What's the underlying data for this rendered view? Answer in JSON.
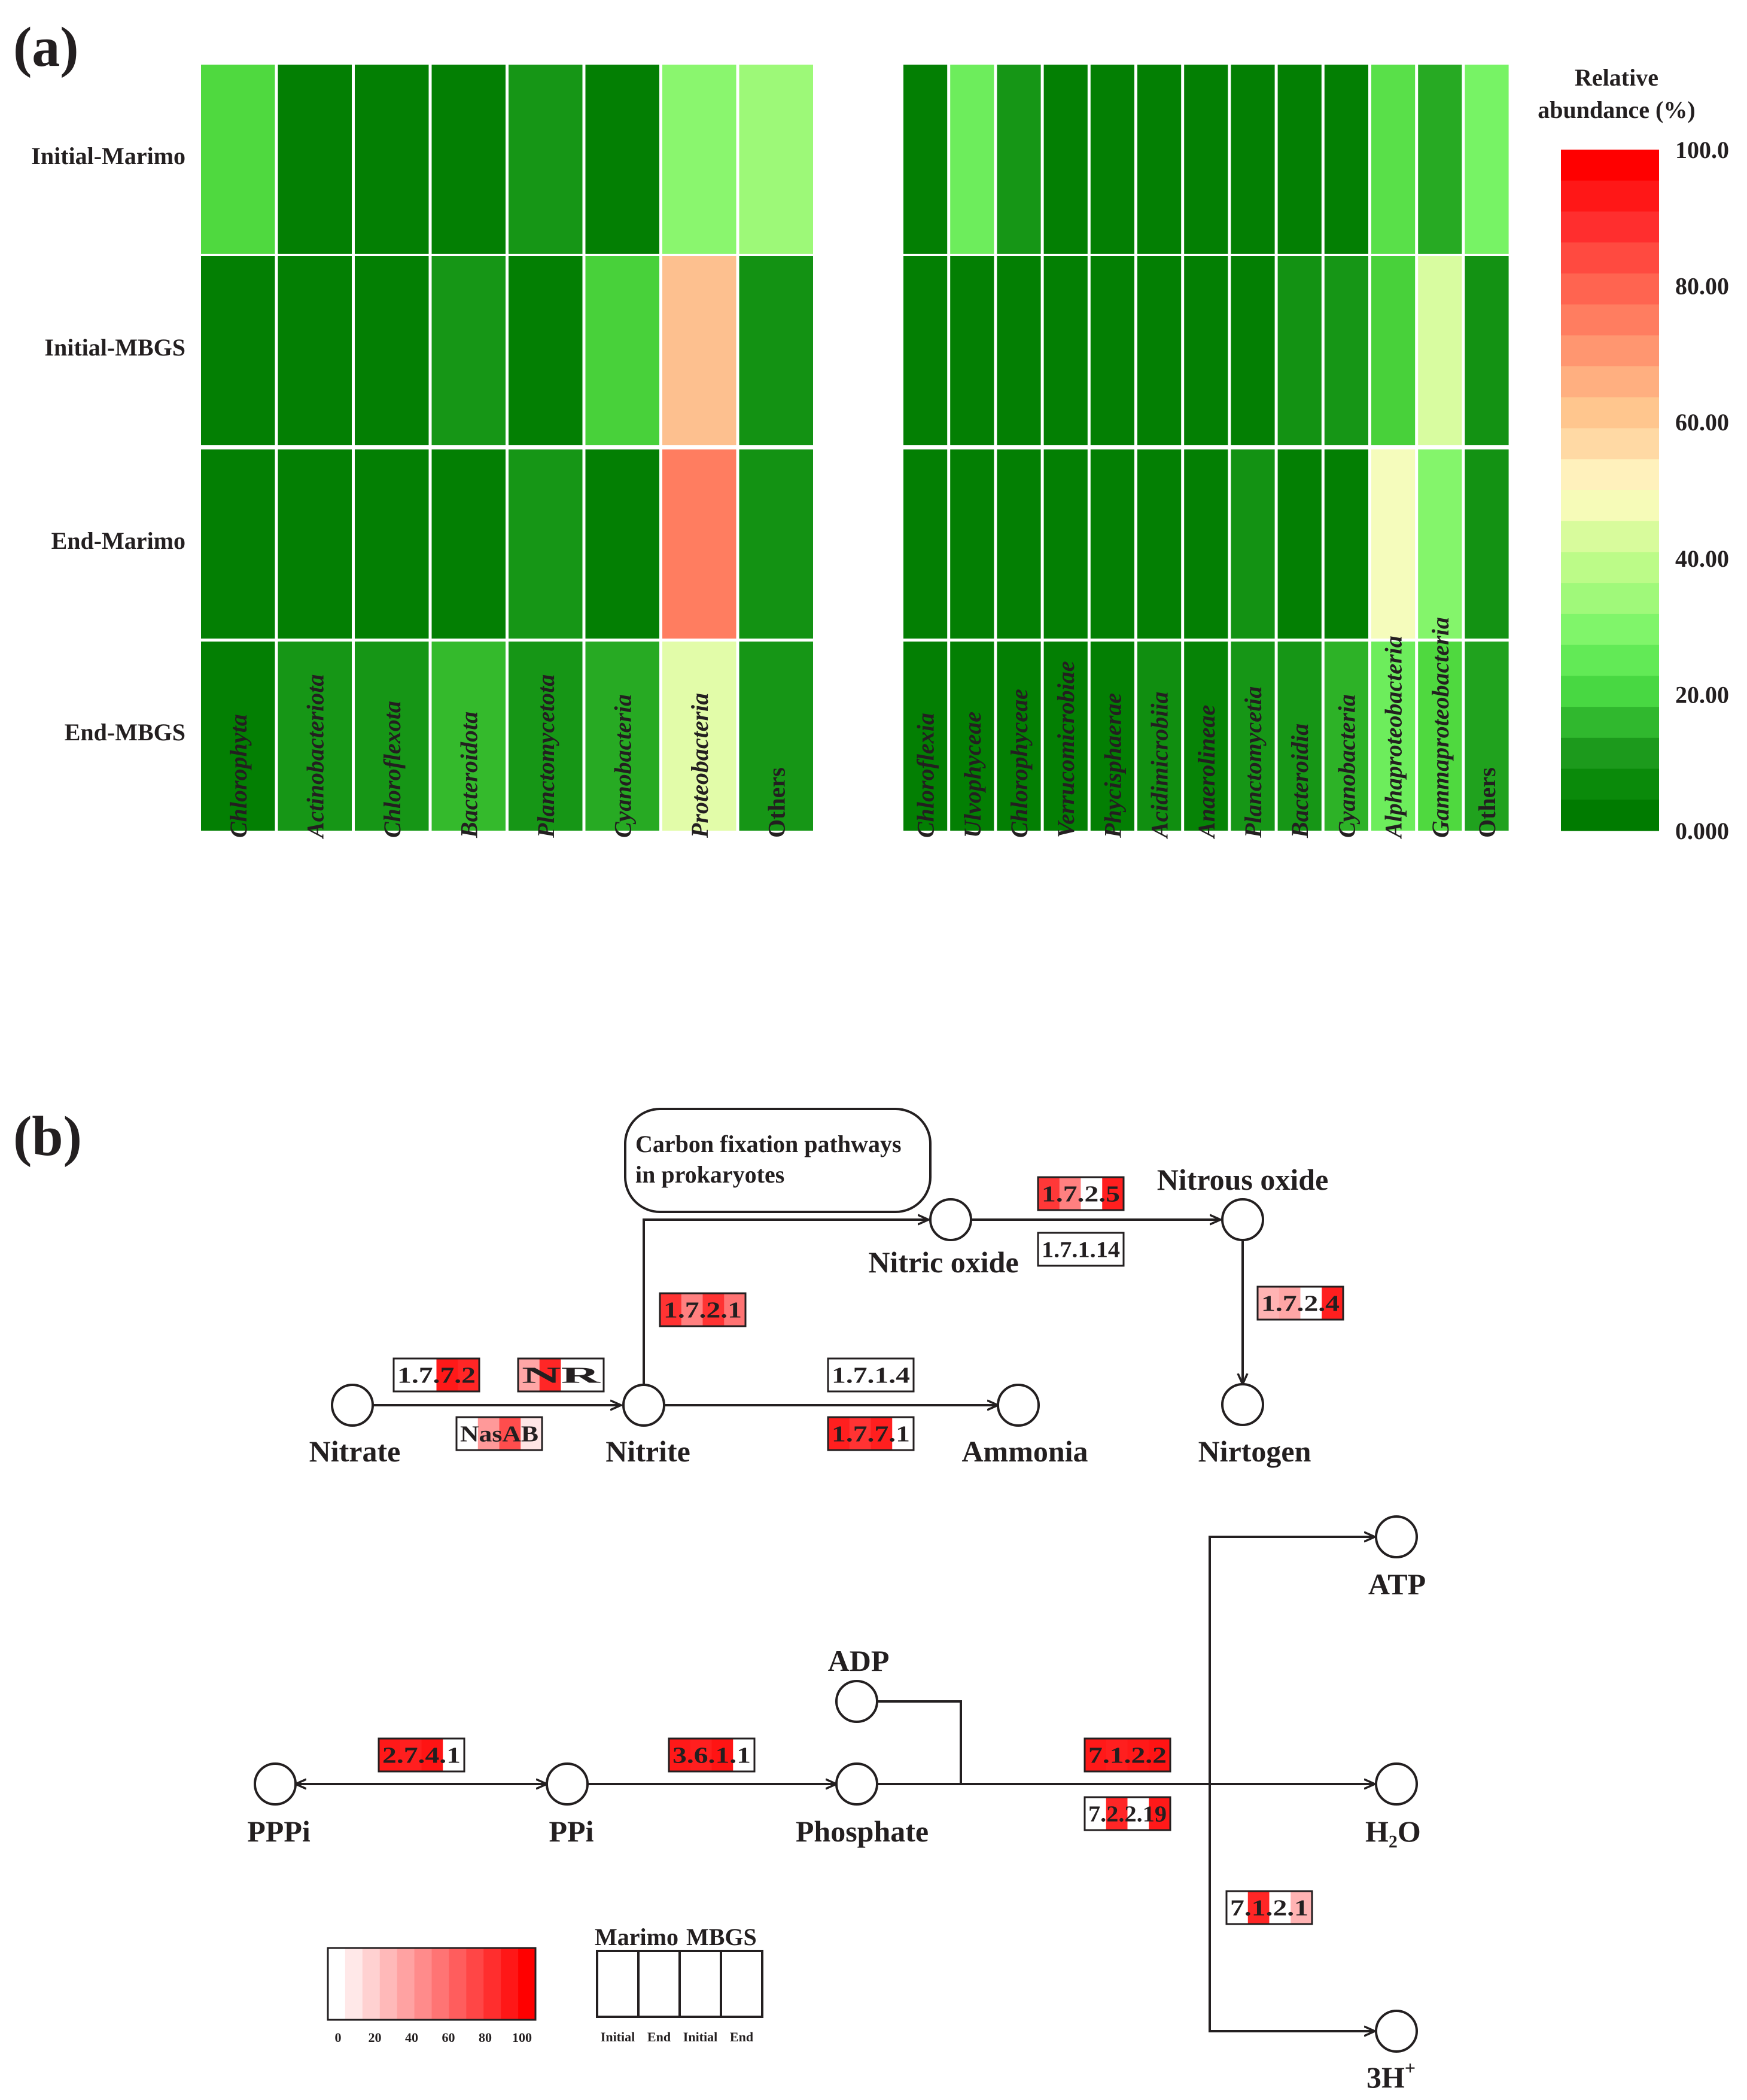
{
  "panel_a_label": "(a)",
  "panel_b_label": "(b)",
  "chart_data": [
    {
      "type": "heatmap",
      "rows": [
        "Initial-Marimo",
        "Initial-MBGS",
        "End-Marimo",
        "End-MBGS"
      ],
      "columns": [
        "Chlorophyta",
        "Actinobacteriota",
        "Chloroflexota",
        "Bacteroidota",
        "Planctomycetota",
        "Cyanobacteria",
        "Proteobacteria",
        "Others"
      ],
      "values": [
        [
          16,
          1,
          1,
          1,
          7,
          1,
          27,
          30
        ],
        [
          1,
          1,
          1,
          7,
          1,
          15,
          60,
          6
        ],
        [
          1,
          1,
          1,
          1,
          7,
          1,
          75,
          6
        ],
        [
          1,
          7,
          7,
          12,
          7,
          10,
          42,
          7
        ]
      ]
    },
    {
      "type": "heatmap",
      "rows": [
        "Initial-Marimo",
        "Initial-MBGS",
        "End-Marimo",
        "End-MBGS"
      ],
      "columns": [
        "Chloroflexia",
        "Ulvophyceae",
        "Chlorophyceae",
        "Verrucomicrobiae",
        "Phycisphaerae",
        "Acidimicrobiia",
        "Anaerolineae",
        "Planctomycetia",
        "Bacteroidia",
        "Cyanobacteria",
        "Alphaproteobacteria",
        "Gammaproteobacteria",
        "Others"
      ],
      "values": [
        [
          1,
          22,
          7,
          1,
          1,
          1,
          1,
          1,
          1,
          1,
          18,
          10,
          24
        ],
        [
          1,
          1,
          1,
          1,
          1,
          1,
          1,
          1,
          6,
          7,
          15,
          40,
          6
        ],
        [
          1,
          1,
          1,
          1,
          1,
          1,
          1,
          6,
          1,
          1,
          46,
          26,
          6
        ],
        [
          1,
          1,
          1,
          1,
          1,
          5,
          2,
          7,
          7,
          11,
          22,
          16,
          9
        ]
      ]
    }
  ],
  "legend": {
    "title_line1": "Relative",
    "title_line2": "abundance (%)",
    "ticks": [
      "100.0",
      "80.00",
      "60.00",
      "40.00",
      "20.00",
      "0.000"
    ],
    "colors_top_to_bottom": [
      "#ff0000",
      "#ff1717",
      "#ff2e2e",
      "#ff4a40",
      "#ff6450",
      "#ff7d60",
      "#ff9670",
      "#ffaf80",
      "#ffc68e",
      "#ffd9a4",
      "#fff1bc",
      "#f6fbb8",
      "#d8fb9c",
      "#bcfb88",
      "#a0f97a",
      "#80f56a",
      "#62ea56",
      "#48d842",
      "#30b82e",
      "#1c9a1c",
      "#0a8a0a",
      "#007b00"
    ],
    "heat_stops": [
      {
        "v": 0,
        "color": "#007b00"
      },
      {
        "v": 8,
        "color": "#199a19"
      },
      {
        "v": 16,
        "color": "#4fd93f"
      },
      {
        "v": 24,
        "color": "#77f365"
      },
      {
        "v": 32,
        "color": "#a9fb7e"
      },
      {
        "v": 40,
        "color": "#d8fca0"
      },
      {
        "v": 46,
        "color": "#f5fcbc"
      },
      {
        "v": 52,
        "color": "#fff0b8"
      },
      {
        "v": 60,
        "color": "#fdc08f"
      },
      {
        "v": 70,
        "color": "#ff9670"
      },
      {
        "v": 80,
        "color": "#ff6450"
      },
      {
        "v": 90,
        "color": "#ff3535"
      },
      {
        "v": 100,
        "color": "#ff0000"
      }
    ]
  },
  "pathway": {
    "carbon_box": [
      "Carbon fixation pathways",
      "in prokaryotes"
    ],
    "nodes": {
      "nitrate": "Nitrate",
      "nitrite": "Nitrite",
      "ammonia": "Ammonia",
      "nitric_oxide": "Nitric oxide",
      "nitrous_oxide": "Nitrous oxide",
      "nitrogen": "Nirtogen",
      "pppi": "PPPi",
      "ppi": "PPi",
      "phosphate": "Phosphate",
      "adp": "ADP",
      "atp": "ATP",
      "h2o_h": "H",
      "h2o_sub": "2",
      "h2o_o": "O",
      "h3_text": "3H",
      "h3_sup": "+"
    },
    "enzymes": [
      {
        "id": "e1",
        "label": "1.7.7.2",
        "levels": [
          0,
          0,
          90,
          85
        ]
      },
      {
        "id": "e2",
        "label": "NR",
        "levels": [
          35,
          85,
          0,
          0
        ]
      },
      {
        "id": "e3",
        "label": "NasAB",
        "levels": [
          0,
          40,
          70,
          10
        ]
      },
      {
        "id": "e4",
        "label": "1.7.2.1",
        "levels": [
          80,
          50,
          80,
          55
        ]
      },
      {
        "id": "e5",
        "label": "1.7.1.4",
        "levels": [
          0,
          0,
          0,
          0
        ]
      },
      {
        "id": "e6",
        "label": "1.7.7.1",
        "levels": [
          88,
          80,
          88,
          0
        ]
      },
      {
        "id": "e7",
        "label": "1.7.2.5",
        "levels": [
          78,
          50,
          0,
          88
        ]
      },
      {
        "id": "e8",
        "label": "1.7.1.14",
        "levels": [
          0,
          0,
          0,
          0
        ]
      },
      {
        "id": "e9",
        "label": "1.7.2.4",
        "levels": [
          30,
          35,
          0,
          88
        ]
      },
      {
        "id": "e10",
        "label": "2.7.4.1",
        "levels": [
          90,
          88,
          92,
          0
        ]
      },
      {
        "id": "e11",
        "label": "3.6.1.1",
        "levels": [
          90,
          88,
          92,
          0
        ]
      },
      {
        "id": "e12",
        "label": "7.1.2.2",
        "levels": [
          90,
          88,
          90,
          92
        ]
      },
      {
        "id": "e13",
        "label": "7.2.2.19",
        "levels": [
          0,
          85,
          0,
          90
        ]
      },
      {
        "id": "e14",
        "label": "7.1.2.1",
        "levels": [
          0,
          85,
          0,
          30
        ]
      }
    ],
    "scale_ticks": [
      "0",
      "20",
      "40",
      "60",
      "80",
      "100"
    ],
    "sample_groups": [
      "Marimo",
      "MBGS"
    ],
    "sample_columns": [
      "Initial",
      "End",
      "Initial",
      "End"
    ]
  }
}
